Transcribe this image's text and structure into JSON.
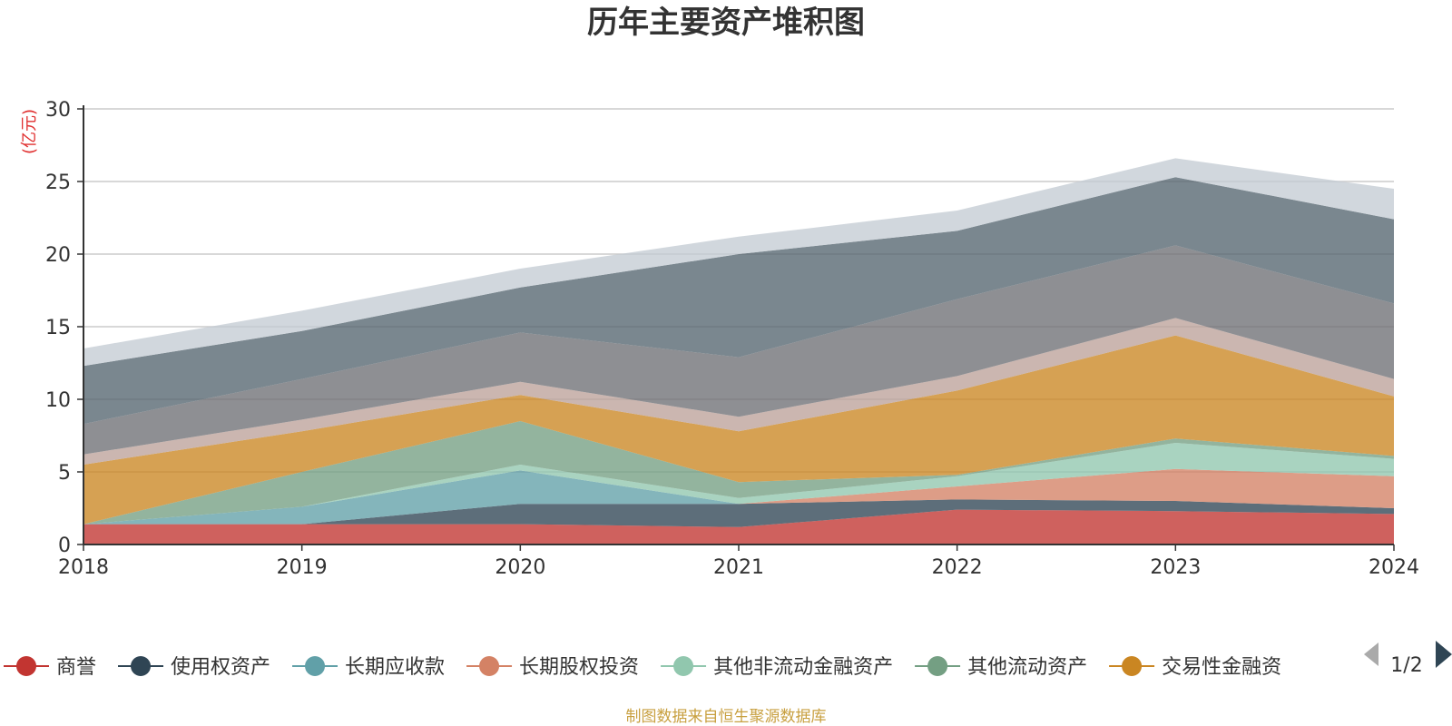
{
  "chart_data": {
    "type": "area",
    "stacked": true,
    "title": "历年主要资产堆积图",
    "unit": "(亿元)",
    "x": [
      "2018",
      "2019",
      "2020",
      "2021",
      "2022",
      "2023",
      "2024"
    ],
    "ylim": [
      0,
      30
    ],
    "yticks": [
      0,
      5,
      10,
      15,
      20,
      25,
      30
    ],
    "grid": true,
    "series": [
      {
        "name": "商誉",
        "color": "#c23531",
        "values": [
          1.4,
          1.4,
          1.4,
          1.2,
          2.4,
          2.3,
          2.1
        ]
      },
      {
        "name": "使用权资产",
        "color": "#2f4554",
        "values": [
          0.0,
          0.0,
          1.4,
          1.6,
          0.7,
          0.7,
          0.4
        ]
      },
      {
        "name": "长期应收款",
        "color": "#61a0a8",
        "values": [
          0.0,
          1.2,
          2.3,
          0.0,
          0.0,
          0.0,
          0.0
        ]
      },
      {
        "name": "长期股权投资",
        "color": "#d48265",
        "values": [
          0.0,
          0.0,
          0.0,
          0.0,
          0.9,
          2.2,
          2.2
        ]
      },
      {
        "name": "其他非流动金融资产",
        "color": "#91c7ae",
        "values": [
          0.0,
          0.0,
          0.4,
          0.4,
          0.7,
          1.8,
          1.2
        ]
      },
      {
        "name": "其他流动资产",
        "color": "#749f83",
        "values": [
          0.0,
          2.4,
          3.0,
          1.1,
          0.1,
          0.3,
          0.2
        ]
      },
      {
        "name": "交易性金融资",
        "color": "#ca8622",
        "values": [
          4.1,
          2.8,
          1.8,
          3.5,
          5.8,
          7.1,
          4.1
        ]
      },
      {
        "name": "",
        "color": "#bda29a",
        "values": [
          0.7,
          0.8,
          0.9,
          1.0,
          1.0,
          1.2,
          1.2
        ]
      },
      {
        "name": "",
        "color": "#6e7074",
        "values": [
          2.1,
          2.8,
          3.4,
          4.1,
          5.3,
          5.0,
          5.2
        ]
      },
      {
        "name": "",
        "color": "#546570",
        "values": [
          4.0,
          3.3,
          3.1,
          7.1,
          4.7,
          4.7,
          5.8
        ]
      },
      {
        "name": "",
        "color": "#c4ccd3",
        "values": [
          1.2,
          1.4,
          1.3,
          1.2,
          1.4,
          1.3,
          2.1
        ]
      }
    ],
    "legend": {
      "position": "bottom",
      "page": "1/2"
    },
    "source": "制图数据来自恒生聚源数据库"
  }
}
